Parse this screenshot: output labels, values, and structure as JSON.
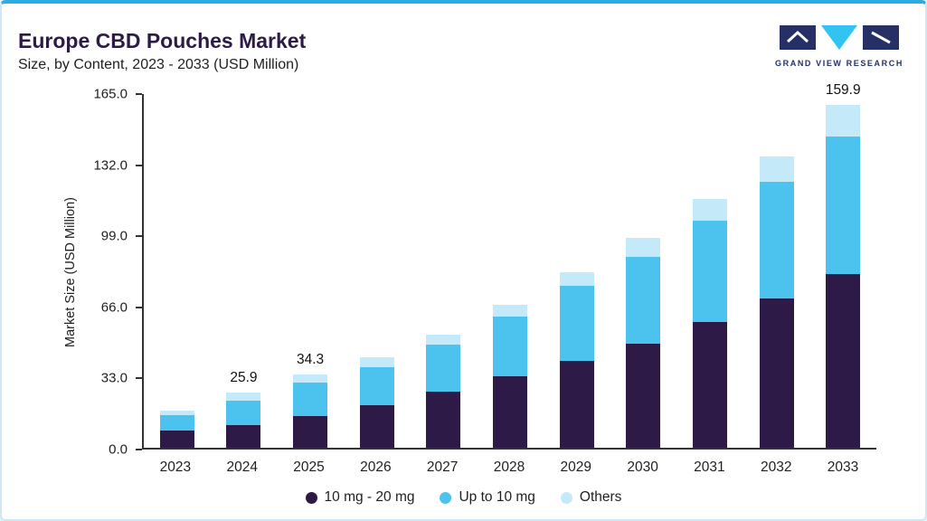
{
  "header": {
    "title": "Europe CBD Pouches Market",
    "subtitle": "Size, by Content, 2023 - 2033 (USD Million)"
  },
  "logo": {
    "text": "GRAND VIEW RESEARCH"
  },
  "colors": {
    "accent_top_border": "#2aabe2",
    "page_background": "#e3f1f9",
    "card_background": "#ffffff",
    "title_text": "#2e1a47",
    "axis_line": "#333333",
    "logo_navy": "#262f66",
    "logo_cyan": "#31c4f3"
  },
  "chart_data": {
    "type": "bar",
    "stacked": true,
    "title": "Europe CBD Pouches Market Size, by Content, 2023 - 2033 (USD Million)",
    "xlabel": "",
    "ylabel": "Market Size (USD Million)",
    "ylim": [
      0,
      165
    ],
    "ytick_labels": [
      "165.0",
      "132.0",
      "99.0",
      "66.0",
      "33.0",
      "0.0"
    ],
    "grid": false,
    "legend_position": "bottom",
    "categories": [
      "2023",
      "2024",
      "2025",
      "2026",
      "2027",
      "2028",
      "2029",
      "2030",
      "2031",
      "2032",
      "2033"
    ],
    "series": [
      {
        "name": "10 mg - 20 mg",
        "color": "#2e1a47",
        "values": [
          8.0,
          10.5,
          15.0,
          20.0,
          26.0,
          33.5,
          40.5,
          48.5,
          58.5,
          69.5,
          81.0
        ]
      },
      {
        "name": "Up to 10 mg",
        "color": "#4cc3ee",
        "values": [
          7.0,
          11.5,
          15.5,
          17.5,
          22.0,
          27.5,
          35.0,
          40.5,
          47.5,
          54.5,
          64.0
        ]
      },
      {
        "name": "Others",
        "color": "#c4eafa",
        "values": [
          2.5,
          3.9,
          3.8,
          4.5,
          5.0,
          5.5,
          6.5,
          9.0,
          10.0,
          12.0,
          14.9
        ]
      }
    ],
    "totals": [
      17.5,
      25.9,
      34.3,
      42.0,
      53.0,
      66.5,
      82.0,
      98.0,
      116.0,
      136.0,
      159.9
    ],
    "bar_value_labels": [
      "",
      "25.9",
      "34.3",
      "",
      "",
      "",
      "",
      "",
      "",
      "",
      "159.9"
    ]
  }
}
